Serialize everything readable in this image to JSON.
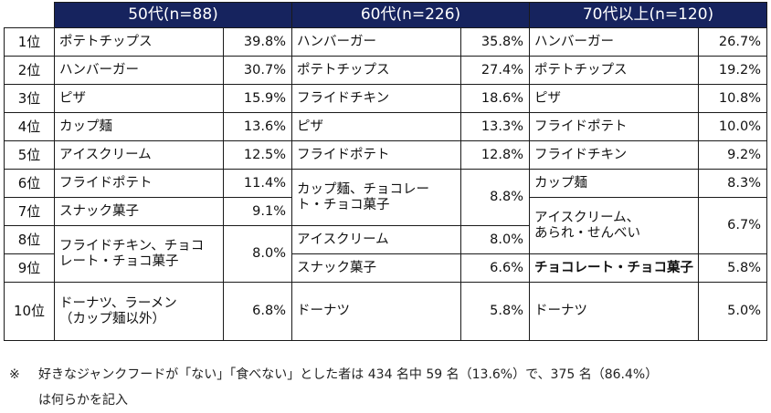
{
  "headers": {
    "g50": "50代(n=88)",
    "g60": "60代(n=226)",
    "g70": "70代以上(n=120)"
  },
  "ranks": [
    "1位",
    "2位",
    "3位",
    "4位",
    "5位",
    "6位",
    "7位",
    "8位",
    "9位",
    "10位"
  ],
  "g50": [
    {
      "item": "ポテトチップス",
      "pct": "39.8%"
    },
    {
      "item": "ハンバーガー",
      "pct": "30.7%"
    },
    {
      "item": "ピザ",
      "pct": "15.9%"
    },
    {
      "item": "カップ麺",
      "pct": "13.6%"
    },
    {
      "item": "アイスクリーム",
      "pct": "12.5%"
    },
    {
      "item": "フライドポテト",
      "pct": "11.4%"
    },
    {
      "item": "スナック菓子",
      "pct": "9.1%"
    },
    {
      "item1": "フライドチキン、チョコ",
      "item2": "レート・チョコ菓子",
      "pct": "8.0%"
    },
    {
      "item1": "ドーナツ、ラーメン",
      "item2": "（カップ麺以外）",
      "pct": "6.8%"
    }
  ],
  "g60": [
    {
      "item": "ハンバーガー",
      "pct": "35.8%"
    },
    {
      "item": "ポテトチップス",
      "pct": "27.4%"
    },
    {
      "item": "フライドチキン",
      "pct": "18.6%"
    },
    {
      "item": "ピザ",
      "pct": "13.3%"
    },
    {
      "item": "フライドポテト",
      "pct": "12.8%"
    },
    {
      "item1": "カップ麺、チョコレー",
      "item2": "ト・チョコ菓子",
      "pct": "8.8%"
    },
    {
      "item": "アイスクリーム",
      "pct": "8.0%"
    },
    {
      "item": "スナック菓子",
      "pct": "6.6%"
    },
    {
      "item": "ドーナツ",
      "pct": "5.8%"
    }
  ],
  "g70": [
    {
      "item": "ハンバーガー",
      "pct": "26.7%"
    },
    {
      "item": "ポテトチップス",
      "pct": "19.2%"
    },
    {
      "item": "ピザ",
      "pct": "10.8%"
    },
    {
      "item": "フライドポテト",
      "pct": "10.0%"
    },
    {
      "item": "フライドチキン",
      "pct": "9.2%"
    },
    {
      "item": "カップ麺",
      "pct": "8.3%"
    },
    {
      "item1": "アイスクリーム、",
      "item2": "あられ・せんべい",
      "pct": "6.7%"
    },
    {
      "item": "チョコレート・チョコ菓子",
      "pct": "5.8%"
    },
    {
      "item": "ドーナツ",
      "pct": "5.0%"
    }
  ],
  "note": {
    "mark": "※",
    "line1": "好きなジャンクフードが「ない」「食べない」とした者は 434 名中 59 名（13.6%）で、375 名（86.4%）",
    "line2": "は何らかを記入"
  }
}
